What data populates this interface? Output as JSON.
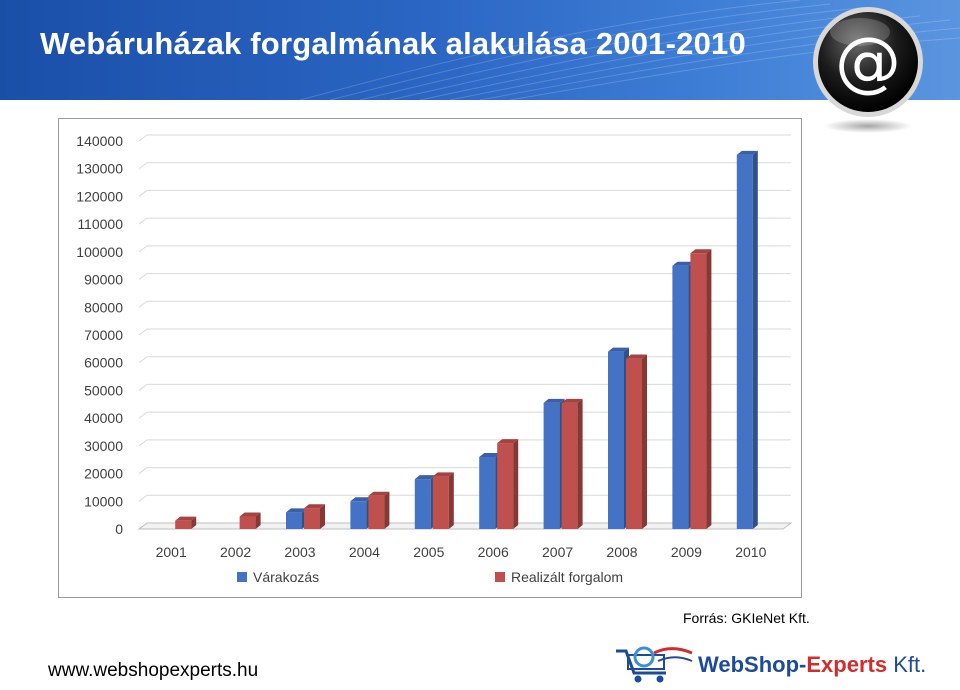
{
  "header": {
    "title": "Webáruházak forgalmának alakulása 2001-2010",
    "at_symbol": "@"
  },
  "chart_data": {
    "type": "bar",
    "title": "",
    "xlabel": "",
    "ylabel": "",
    "categories": [
      "2001",
      "2002",
      "2003",
      "2004",
      "2005",
      "2006",
      "2007",
      "2008",
      "2009",
      "2010"
    ],
    "series": [
      {
        "name": "Várakozás",
        "color": "#4472c4",
        "values": [
          null,
          null,
          6000,
          10000,
          18000,
          26000,
          45500,
          64000,
          95000,
          135000
        ]
      },
      {
        "name": "Realizált forgalom",
        "color": "#c0504d",
        "values": [
          3000,
          4500,
          7500,
          12000,
          19000,
          31000,
          45500,
          61500,
          99500,
          null
        ]
      }
    ],
    "ylim": [
      0,
      140000
    ],
    "yticks": [
      0,
      10000,
      20000,
      30000,
      40000,
      50000,
      60000,
      70000,
      80000,
      90000,
      100000,
      110000,
      120000,
      130000,
      140000
    ],
    "grid": true,
    "legend": "bottom"
  },
  "footer": {
    "source": "Forrás: GKIeNet Kft.",
    "url": "www.webshopexperts.hu",
    "logo_web": "WebShop-",
    "logo_experts": "Experts",
    "logo_kft": " Kft."
  },
  "colors": {
    "banner": "#2b66c4",
    "series1": "#4472c4",
    "series2": "#c0504d"
  }
}
